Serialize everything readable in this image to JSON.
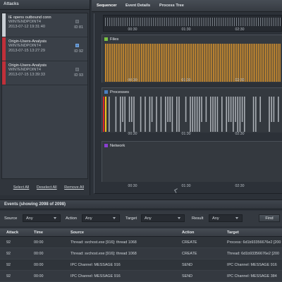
{
  "attacks_panel": {
    "header": "Attacks",
    "items": [
      {
        "title": "IE opens outbound conn",
        "host": "WIN7ENDPOINT4",
        "timestamp": "2013-07-12 19:31:40",
        "id": "ID 81",
        "color": "#c9ced4",
        "checked": false
      },
      {
        "title": "Origin-Users-Analysis",
        "host": "WIN7ENDPOINT4",
        "timestamp": "2013-07-15 13:27:29",
        "id": "ID 92",
        "color": "#c0303a",
        "checked": true
      },
      {
        "title": "Origin-Users-Analysis",
        "host": "WIN7ENDPOINT4",
        "timestamp": "2013-07-15 13:39:33",
        "id": "ID 93",
        "color": "#c0303a",
        "checked": false
      }
    ],
    "actions": {
      "select_all": "Select All",
      "deselect_all": "Deselect All",
      "remove_all": "Remove All"
    }
  },
  "tabs": {
    "sequencer": "Sequencer",
    "event_details": "Event Details",
    "process_tree": "Process Tree"
  },
  "sequencer": {
    "time_ticks": [
      "00:30",
      "01:30",
      "02:30"
    ],
    "lanes": {
      "files": {
        "label": "Files",
        "color": "#7ac143"
      },
      "processes": {
        "label": "Processes",
        "color": "#4a7fc0"
      },
      "network": {
        "label": "Network",
        "color": "#8a3fd1"
      }
    },
    "colors": {
      "files_bar": "#e79b2b",
      "process_bar": "#a9aeb4",
      "marker_red": "#d3262b",
      "marker_yellow": "#f0c419"
    }
  },
  "events": {
    "header": "Events (showing 2098 of 2098)",
    "filters": {
      "source_label": "Source",
      "source_value": "Any",
      "action_label": "Action",
      "action_value": "Any",
      "target_label": "Target",
      "target_value": "Any",
      "result_label": "Result",
      "result_value": "Any",
      "find_label": "Find"
    },
    "columns": {
      "attack": "Attack",
      "time": "Time",
      "source": "Source",
      "action": "Action",
      "target": "Target"
    },
    "rows": [
      {
        "attack": "92",
        "time": "00:00",
        "source": "Thread: svchost.exe [916]: thread 1068",
        "action": "CREATE",
        "target": "Process: 6d1b93356676e2 [200"
      },
      {
        "attack": "92",
        "time": "00:00",
        "source": "Thread: svchost.exe [916]: thread 1068",
        "action": "CREATE",
        "target": "Thread: 6d1b93356676e2 [200"
      },
      {
        "attack": "92",
        "time": "00:00",
        "source": "IPC Channel: MESSAGE 916",
        "action": "SEND",
        "target": "IPC Channel: MESSAGE 916"
      },
      {
        "attack": "92",
        "time": "00:00",
        "source": "IPC Channel: MESSAGE 916",
        "action": "SEND",
        "target": "IPC Channel: MESSAGE 384"
      }
    ]
  }
}
